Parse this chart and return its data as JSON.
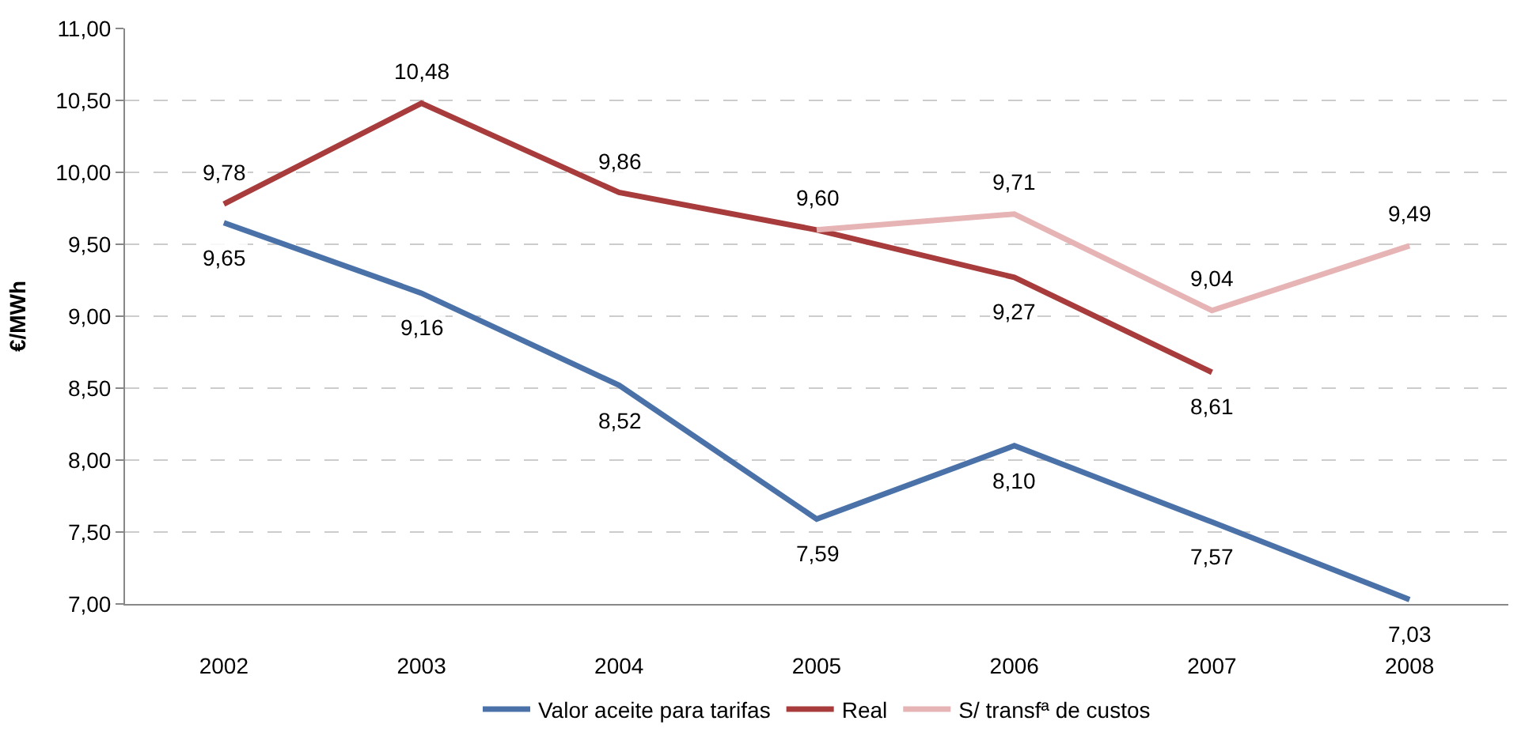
{
  "chart_data": {
    "type": "line",
    "ylabel": "€/MWh",
    "categories": [
      "2002",
      "2003",
      "2004",
      "2005",
      "2006",
      "2007",
      "2008"
    ],
    "series": [
      {
        "name": "Valor aceite para tarifas",
        "color": "#4a72a8",
        "values": [
          9.65,
          9.16,
          8.52,
          7.59,
          8.1,
          7.57,
          7.03
        ],
        "value_labels": [
          "9,65",
          "9,16",
          "8,52",
          "7,59",
          "8,10",
          "7,57",
          "7,03"
        ]
      },
      {
        "name": "Real",
        "color": "#a83c3c",
        "values": [
          9.78,
          10.48,
          9.86,
          9.6,
          9.27,
          8.61,
          null
        ],
        "value_labels": [
          "9,78",
          "10,48",
          "9,86",
          "9,60",
          "9,27",
          "8,61",
          null
        ]
      },
      {
        "name": "S/ transfª de custos",
        "color": "#e6b4b4",
        "values": [
          null,
          null,
          null,
          9.6,
          9.71,
          9.04,
          9.49
        ],
        "value_labels": [
          null,
          null,
          null,
          null,
          "9,71",
          "9,04",
          "9,49"
        ]
      }
    ],
    "ylim": [
      7.0,
      11.0
    ],
    "yticks": [
      {
        "value": 7.0,
        "label": "7,00"
      },
      {
        "value": 7.5,
        "label": "7,50"
      },
      {
        "value": 8.0,
        "label": "8,00"
      },
      {
        "value": 8.5,
        "label": "8,50"
      },
      {
        "value": 9.0,
        "label": "9,00"
      },
      {
        "value": 9.5,
        "label": "9,50"
      },
      {
        "value": 10.0,
        "label": "10,00"
      },
      {
        "value": 10.5,
        "label": "10,50"
      },
      {
        "value": 11.0,
        "label": "11,00"
      }
    ],
    "grid": "y",
    "legend": "bottom",
    "marker": "none",
    "line_style": "solid"
  }
}
